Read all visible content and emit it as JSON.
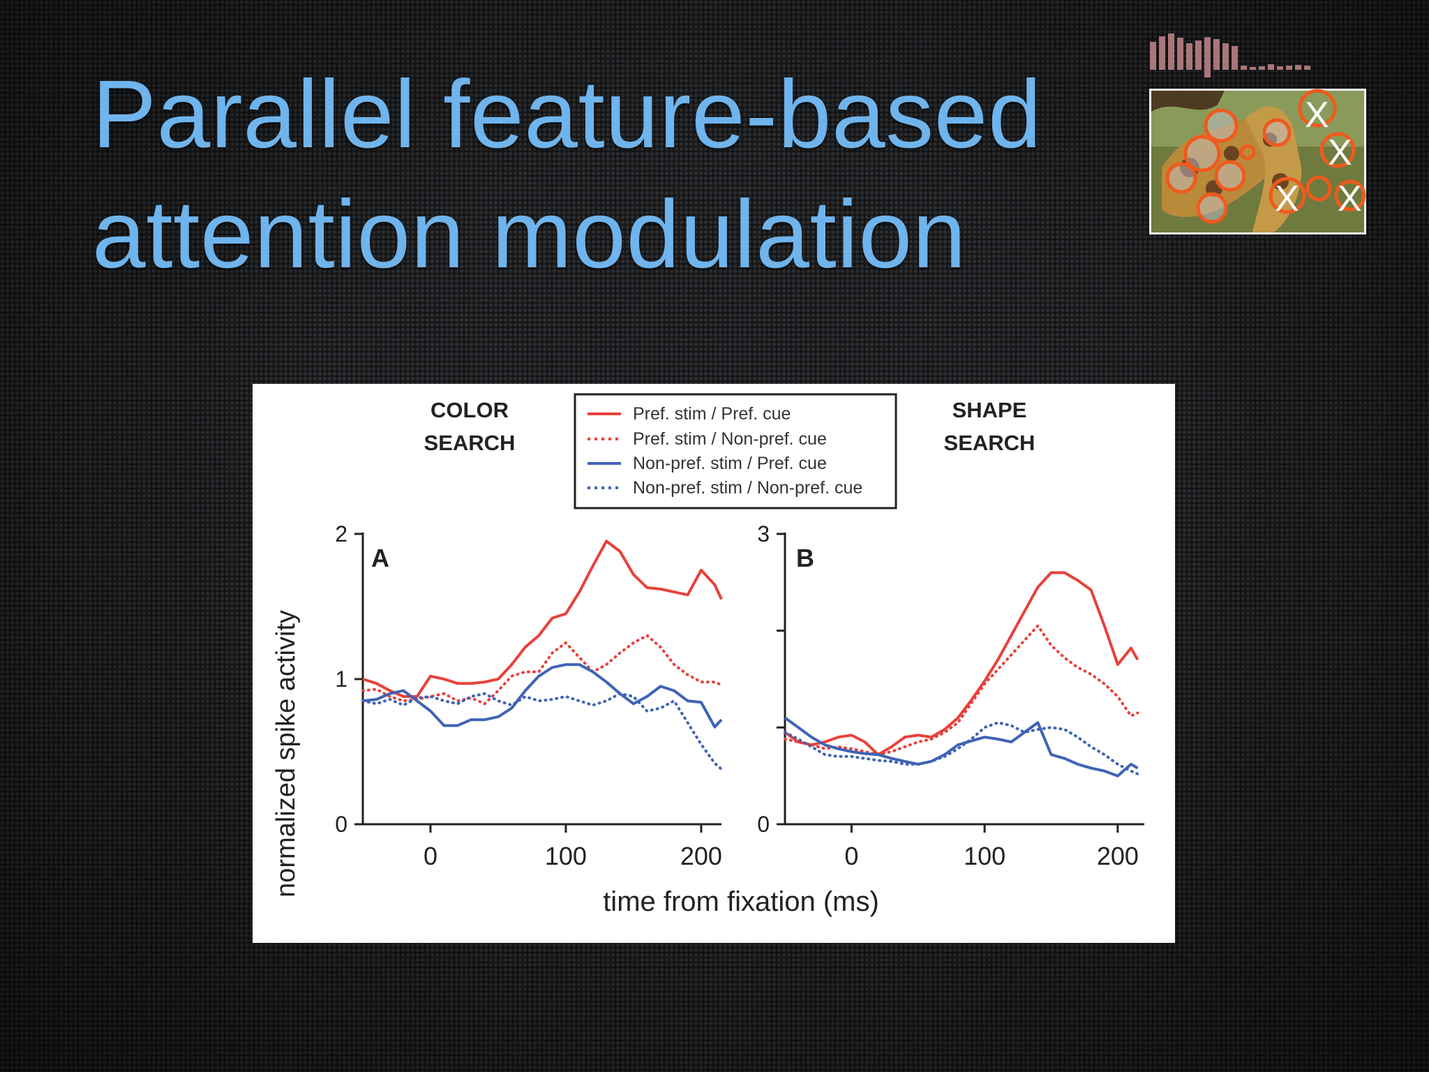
{
  "slide": {
    "title_line1": "Parallel feature-based",
    "title_line2": "attention modulation"
  },
  "thumbnail": {
    "icon": "giraffe-saliency-icon",
    "bar_colors": [
      "#a9767a",
      "#a9767a"
    ],
    "circle_color": "#f05a1e",
    "markers": [
      "X",
      "X",
      "X",
      "X"
    ]
  },
  "chart_data": [
    {
      "type": "line",
      "panel": "A",
      "heading": "COLOR SEARCH",
      "ylabel": "normalized spike activity",
      "xlabel": "time from fixation (ms)",
      "xlim": [
        -50,
        215
      ],
      "ylim": [
        0,
        2
      ],
      "xticks": [
        0,
        100,
        200
      ],
      "yticks": [
        0,
        1,
        2
      ],
      "series": [
        {
          "name": "Pref. stim / Pref. cue",
          "color": "#e8413b",
          "dash": false,
          "x": [
            -50,
            -40,
            -30,
            -20,
            -10,
            0,
            10,
            20,
            30,
            40,
            50,
            60,
            70,
            80,
            90,
            100,
            110,
            120,
            130,
            140,
            150,
            160,
            170,
            180,
            190,
            200,
            210,
            215
          ],
          "y": [
            1.0,
            0.97,
            0.92,
            0.88,
            0.88,
            1.02,
            1.0,
            0.97,
            0.97,
            0.98,
            1.0,
            1.1,
            1.22,
            1.3,
            1.42,
            1.45,
            1.6,
            1.78,
            1.95,
            1.88,
            1.72,
            1.63,
            1.62,
            1.6,
            1.58,
            1.75,
            1.65,
            1.55
          ]
        },
        {
          "name": "Pref. stim / Non-pref. cue",
          "color": "#e8413b",
          "dash": true,
          "x": [
            -50,
            -40,
            -30,
            -20,
            -10,
            0,
            10,
            20,
            30,
            40,
            50,
            60,
            70,
            80,
            90,
            100,
            110,
            120,
            130,
            140,
            150,
            160,
            170,
            180,
            190,
            200,
            210,
            215
          ],
          "y": [
            0.92,
            0.93,
            0.88,
            0.85,
            0.86,
            0.88,
            0.9,
            0.85,
            0.87,
            0.83,
            0.92,
            1.02,
            1.05,
            1.05,
            1.18,
            1.25,
            1.15,
            1.05,
            1.1,
            1.18,
            1.25,
            1.3,
            1.22,
            1.1,
            1.03,
            0.98,
            0.98,
            0.96
          ]
        },
        {
          "name": "Non-pref. stim / Pref. cue",
          "color": "#3f63b5",
          "dash": false,
          "x": [
            -50,
            -40,
            -30,
            -20,
            -10,
            0,
            10,
            20,
            30,
            40,
            50,
            60,
            70,
            80,
            90,
            100,
            110,
            120,
            130,
            140,
            150,
            160,
            170,
            180,
            190,
            200,
            210,
            215
          ],
          "y": [
            0.85,
            0.86,
            0.9,
            0.92,
            0.85,
            0.78,
            0.68,
            0.68,
            0.72,
            0.72,
            0.74,
            0.8,
            0.92,
            1.02,
            1.08,
            1.1,
            1.1,
            1.05,
            0.98,
            0.9,
            0.83,
            0.88,
            0.95,
            0.92,
            0.85,
            0.84,
            0.67,
            0.72
          ]
        },
        {
          "name": "Non-pref. stim / Non-pref. cue",
          "color": "#3f63b5",
          "dash": true,
          "x": [
            -50,
            -40,
            -30,
            -20,
            -10,
            0,
            10,
            20,
            30,
            40,
            50,
            60,
            70,
            80,
            90,
            100,
            110,
            120,
            130,
            140,
            150,
            160,
            170,
            180,
            190,
            200,
            210,
            215
          ],
          "y": [
            0.85,
            0.83,
            0.86,
            0.82,
            0.87,
            0.88,
            0.85,
            0.83,
            0.88,
            0.9,
            0.85,
            0.82,
            0.88,
            0.85,
            0.86,
            0.88,
            0.85,
            0.82,
            0.85,
            0.9,
            0.88,
            0.78,
            0.8,
            0.85,
            0.7,
            0.55,
            0.42,
            0.38
          ]
        }
      ]
    },
    {
      "type": "line",
      "panel": "B",
      "heading": "SHAPE SEARCH",
      "xlim": [
        -50,
        220
      ],
      "ylim": [
        0,
        3
      ],
      "xticks": [
        0,
        100,
        200
      ],
      "yticks": [
        0,
        1,
        2,
        3
      ],
      "ytick_labels": [
        "0",
        "",
        "",
        "3"
      ],
      "series": [
        {
          "name": "Pref. stim / Pref. cue",
          "color": "#e8413b",
          "dash": false,
          "x": [
            -50,
            -40,
            -30,
            -20,
            -10,
            0,
            10,
            20,
            30,
            40,
            50,
            60,
            70,
            80,
            90,
            100,
            110,
            120,
            130,
            140,
            150,
            160,
            170,
            180,
            190,
            200,
            210,
            215
          ],
          "y": [
            0.95,
            0.85,
            0.82,
            0.85,
            0.9,
            0.92,
            0.85,
            0.72,
            0.8,
            0.9,
            0.92,
            0.9,
            0.98,
            1.1,
            1.28,
            1.48,
            1.7,
            1.95,
            2.2,
            2.45,
            2.6,
            2.6,
            2.52,
            2.42,
            2.05,
            1.65,
            1.82,
            1.7
          ]
        },
        {
          "name": "Pref. stim / Non-pref. cue",
          "color": "#e8413b",
          "dash": true,
          "x": [
            -50,
            -40,
            -30,
            -20,
            -10,
            0,
            10,
            20,
            30,
            40,
            50,
            60,
            70,
            80,
            90,
            100,
            110,
            120,
            130,
            140,
            150,
            160,
            170,
            180,
            190,
            200,
            210,
            215
          ],
          "y": [
            0.88,
            0.85,
            0.82,
            0.78,
            0.8,
            0.78,
            0.75,
            0.72,
            0.75,
            0.8,
            0.85,
            0.88,
            0.95,
            1.05,
            1.25,
            1.45,
            1.6,
            1.75,
            1.9,
            2.05,
            1.85,
            1.72,
            1.62,
            1.55,
            1.45,
            1.32,
            1.12,
            1.15
          ]
        },
        {
          "name": "Non-pref. stim / Pref. cue",
          "color": "#3f63b5",
          "dash": false,
          "x": [
            -50,
            -40,
            -30,
            -20,
            -10,
            0,
            10,
            20,
            30,
            40,
            50,
            60,
            70,
            80,
            90,
            100,
            110,
            120,
            130,
            140,
            150,
            160,
            170,
            180,
            190,
            200,
            210,
            215
          ],
          "y": [
            1.1,
            1.0,
            0.9,
            0.82,
            0.78,
            0.75,
            0.73,
            0.72,
            0.68,
            0.65,
            0.62,
            0.65,
            0.72,
            0.82,
            0.86,
            0.9,
            0.88,
            0.85,
            0.95,
            1.05,
            0.72,
            0.68,
            0.62,
            0.58,
            0.55,
            0.5,
            0.62,
            0.58
          ]
        },
        {
          "name": "Non-pref. stim / Non-pref. cue",
          "color": "#3f63b5",
          "dash": true,
          "x": [
            -50,
            -40,
            -30,
            -20,
            -10,
            0,
            10,
            20,
            30,
            40,
            50,
            60,
            70,
            80,
            90,
            100,
            110,
            120,
            130,
            140,
            150,
            160,
            170,
            180,
            190,
            200,
            210,
            215
          ],
          "y": [
            0.95,
            0.88,
            0.8,
            0.72,
            0.7,
            0.7,
            0.68,
            0.66,
            0.65,
            0.62,
            0.62,
            0.65,
            0.7,
            0.78,
            0.88,
            1.0,
            1.05,
            1.02,
            0.95,
            0.98,
            1.0,
            0.98,
            0.9,
            0.8,
            0.72,
            0.62,
            0.55,
            0.52
          ]
        }
      ]
    }
  ],
  "legend": {
    "placement": "top-center",
    "entries": [
      "Pref. stim / Pref. cue",
      "Pref. stim / Non-pref. cue",
      "Non-pref. stim / Pref. cue",
      "Non-pref. stim / Non-pref. cue"
    ]
  },
  "headings": {
    "a_line1": "COLOR",
    "a_line2": "SEARCH",
    "b_line1": "SHAPE",
    "b_line2": "SEARCH"
  }
}
